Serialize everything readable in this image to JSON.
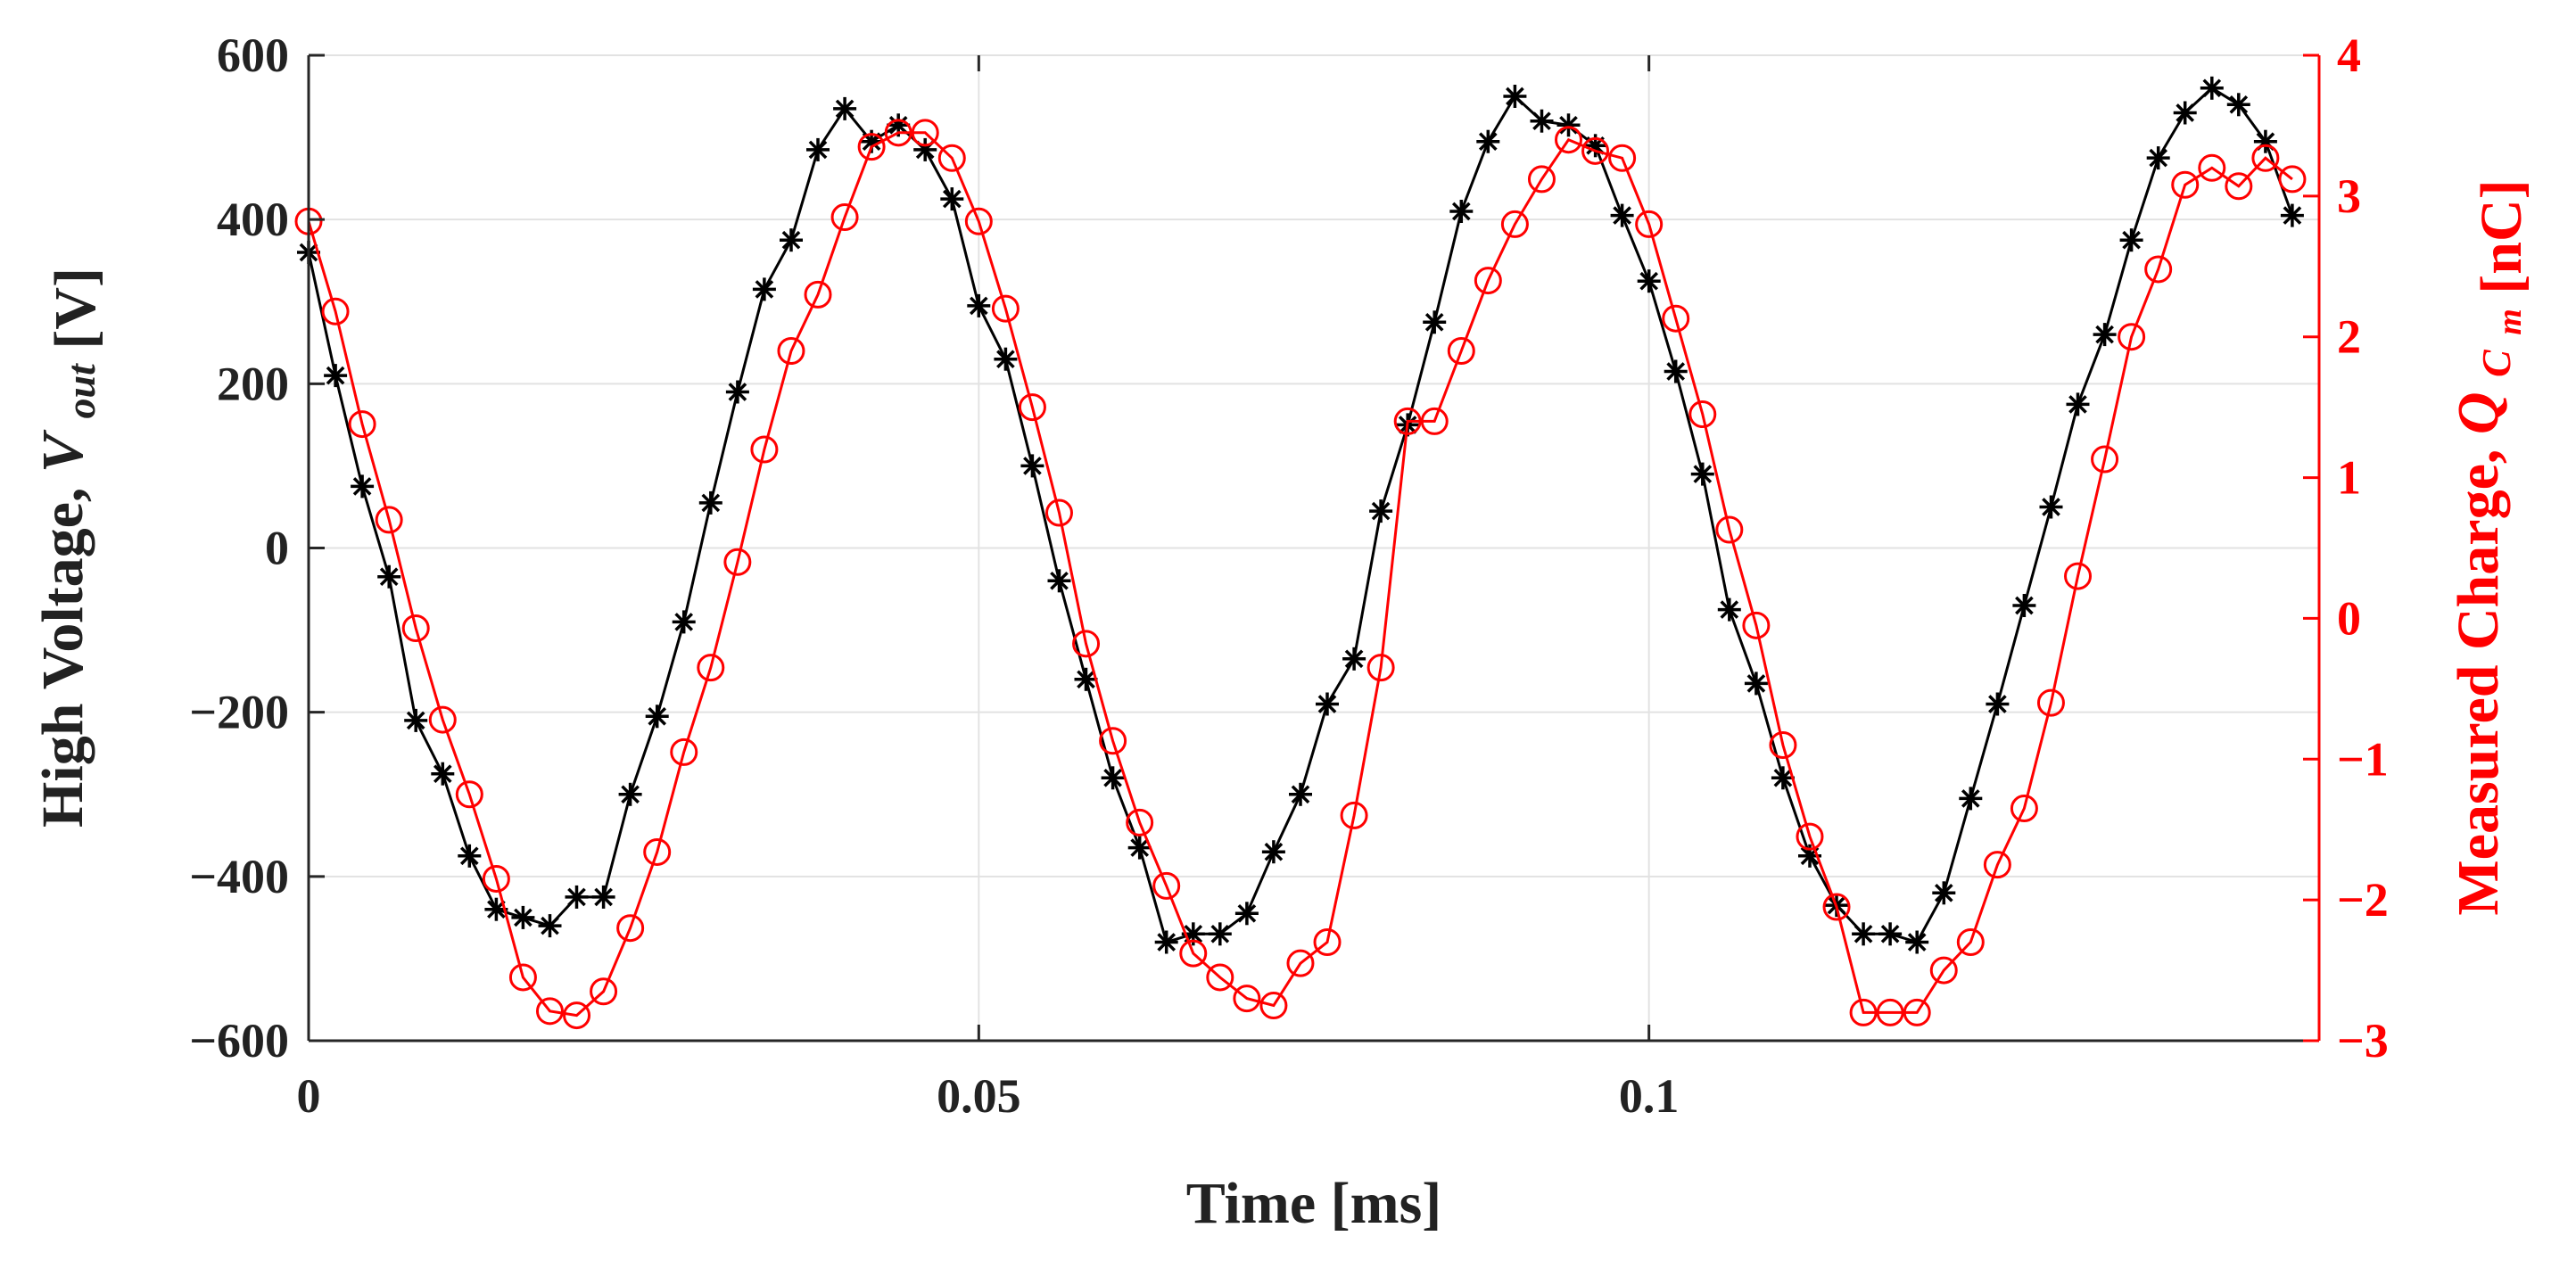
{
  "chart_data": {
    "type": "line",
    "title": "",
    "xlabel": "Time [ms]",
    "xlim": [
      0,
      0.15
    ],
    "xticks": [
      0,
      0.05,
      0.1
    ],
    "xtick_labels": [
      "0",
      "0.05",
      "0.1"
    ],
    "grid": true,
    "ylabel_left": {
      "text": "High Voltage,",
      "symbol": "V",
      "subscript": "out",
      "unit": "[V]"
    },
    "ylabel_right": {
      "text": "Measured Charge,",
      "symbol": "Q",
      "subscript": "C",
      "subsubscript": "m",
      "unit": "[nC]"
    },
    "ylim_left": [
      -600,
      600
    ],
    "yticks_left": [
      -600,
      -400,
      -200,
      0,
      200,
      400,
      600
    ],
    "ytick_labels_left": [
      "−600",
      "−400",
      "−200",
      "0",
      "200",
      "400",
      "600"
    ],
    "ylim_right": [
      -3,
      4
    ],
    "yticks_right": [
      -3,
      -2,
      -1,
      0,
      1,
      2,
      3,
      4
    ],
    "ytick_labels_right": [
      "−3",
      "−2",
      "−1",
      "0",
      "1",
      "2",
      "3",
      "4"
    ],
    "series": [
      {
        "name": "High Voltage",
        "axis": "left",
        "color": "#000000",
        "marker": "asterisk",
        "x": [
          0,
          0.002,
          0.004,
          0.006,
          0.008,
          0.01,
          0.012,
          0.014,
          0.016,
          0.018,
          0.02,
          0.022,
          0.024,
          0.026,
          0.028,
          0.03,
          0.032,
          0.034,
          0.036,
          0.038,
          0.04,
          0.042,
          0.044,
          0.046,
          0.048,
          0.05,
          0.052,
          0.054,
          0.056,
          0.058,
          0.06,
          0.062,
          0.064,
          0.066,
          0.068,
          0.07,
          0.072,
          0.074,
          0.076,
          0.078,
          0.08,
          0.082,
          0.084,
          0.086,
          0.088,
          0.09,
          0.092,
          0.094,
          0.096,
          0.098,
          0.1,
          0.102,
          0.104,
          0.106,
          0.108,
          0.11,
          0.112,
          0.114,
          0.116,
          0.118,
          0.12,
          0.122,
          0.124,
          0.126,
          0.128,
          0.13,
          0.132,
          0.134,
          0.136,
          0.138,
          0.14,
          0.142,
          0.144,
          0.146,
          0.148
        ],
        "values": [
          360,
          210,
          75,
          -35,
          -210,
          -275,
          -375,
          -440,
          -450,
          -460,
          -425,
          -425,
          -300,
          -205,
          -90,
          55,
          190,
          315,
          375,
          485,
          535,
          495,
          515,
          485,
          425,
          295,
          230,
          100,
          -40,
          -160,
          -280,
          -365,
          -480,
          -470,
          -470,
          -445,
          -370,
          -300,
          -190,
          -135,
          45,
          150,
          275,
          410,
          495,
          550,
          520,
          515,
          490,
          405,
          325,
          215,
          90,
          -75,
          -165,
          -280,
          -375,
          -435,
          -470,
          -470,
          -480,
          -420,
          -305,
          -190,
          -70,
          50,
          175,
          260,
          375,
          475,
          530,
          560,
          540,
          495,
          405
        ]
      },
      {
        "name": "Measured Charge",
        "axis": "right",
        "color": "#ff0000",
        "marker": "circle",
        "x": [
          0,
          0.002,
          0.004,
          0.006,
          0.008,
          0.01,
          0.012,
          0.014,
          0.016,
          0.018,
          0.02,
          0.022,
          0.024,
          0.026,
          0.028,
          0.03,
          0.032,
          0.034,
          0.036,
          0.038,
          0.04,
          0.042,
          0.044,
          0.046,
          0.048,
          0.05,
          0.052,
          0.054,
          0.056,
          0.058,
          0.06,
          0.062,
          0.064,
          0.066,
          0.068,
          0.07,
          0.072,
          0.074,
          0.076,
          0.078,
          0.08,
          0.082,
          0.084,
          0.086,
          0.088,
          0.09,
          0.092,
          0.094,
          0.096,
          0.098,
          0.1,
          0.102,
          0.104,
          0.106,
          0.108,
          0.11,
          0.112,
          0.114,
          0.116,
          0.118,
          0.12,
          0.122,
          0.124,
          0.126,
          0.128,
          0.13,
          0.132,
          0.134,
          0.136,
          0.138,
          0.14,
          0.142,
          0.144,
          0.146,
          0.148
        ],
        "values": [
          2.82,
          2.18,
          1.38,
          0.7,
          -0.07,
          -0.72,
          -1.25,
          -1.85,
          -2.55,
          -2.79,
          -2.82,
          -2.65,
          -2.2,
          -1.66,
          -0.95,
          -0.35,
          0.4,
          1.2,
          1.9,
          2.3,
          2.85,
          3.35,
          3.45,
          3.45,
          3.27,
          2.82,
          2.2,
          1.5,
          0.75,
          -0.18,
          -0.87,
          -1.45,
          -1.9,
          -2.38,
          -2.55,
          -2.7,
          -2.75,
          -2.45,
          -2.3,
          -1.4,
          -0.35,
          1.4,
          1.4,
          1.9,
          2.4,
          2.8,
          3.12,
          3.4,
          3.32,
          3.27,
          2.8,
          2.13,
          1.45,
          0.63,
          -0.05,
          -0.9,
          -1.55,
          -2.05,
          -2.8,
          -2.8,
          -2.8,
          -2.5,
          -2.3,
          -1.75,
          -1.35,
          -0.6,
          0.3,
          1.13,
          2.0,
          2.48,
          3.08,
          3.2,
          3.07,
          3.27,
          3.12
        ]
      }
    ]
  }
}
